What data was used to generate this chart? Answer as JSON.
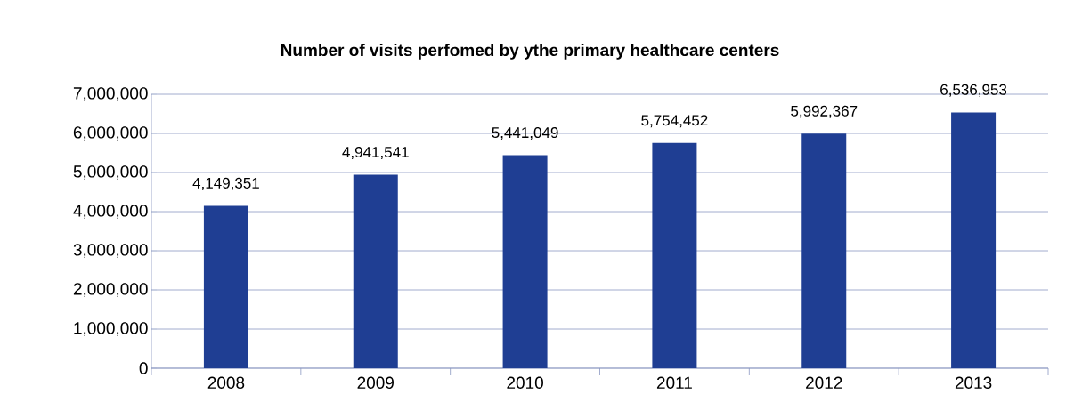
{
  "chart_data": {
    "type": "bar",
    "title": "Number of visits perfomed by ythe primary healthcare centers",
    "categories": [
      "2008",
      "2009",
      "2010",
      "2011",
      "2012",
      "2013"
    ],
    "values": [
      4149351,
      4941541,
      5441049,
      5754452,
      5992367,
      6536953
    ],
    "color": "#1f3e93",
    "ylim": [
      0,
      7000000
    ],
    "yticks": [
      {
        "value": 0,
        "label": "0"
      },
      {
        "value": 1000000,
        "label": "1,000,000"
      },
      {
        "value": 2000000,
        "label": "2,000,000"
      },
      {
        "value": 3000000,
        "label": "3,000,000"
      },
      {
        "value": 4000000,
        "label": "4,000,000"
      },
      {
        "value": 5000000,
        "label": "5,000,000"
      },
      {
        "value": 6000000,
        "label": "6,000,000"
      },
      {
        "value": 7000000,
        "label": "7,000,000"
      }
    ],
    "value_labels": [
      "4,149,351",
      "4,941,541",
      "5,441,049",
      "5,754,452",
      "5,992,367",
      "6,536,953"
    ],
    "grid": "y"
  }
}
